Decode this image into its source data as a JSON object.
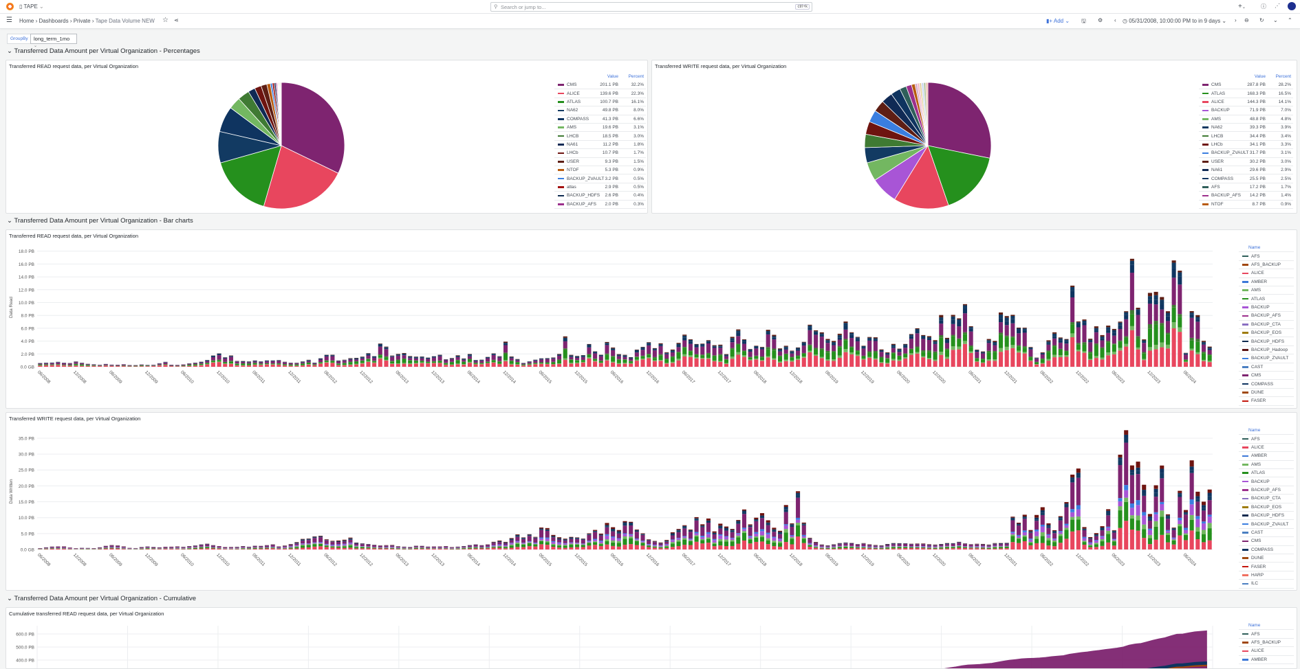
{
  "topbar": {
    "app_name": "TAPE",
    "search_placeholder": "Search or jump to...",
    "search_shortcut": "ctrl+k",
    "plus_label": "+"
  },
  "breadcrumb": [
    "Home",
    "Dashboards",
    "Private",
    "Tape Data Volume NEW"
  ],
  "toolbar": {
    "add_label": "Add",
    "time_range": "05/31/2008, 10:00:00 PM to in 9 days"
  },
  "variables": {
    "groupby_label": "GroupBy",
    "groupby_value": "long_term_1mo"
  },
  "sections": [
    "Transferred Data Amount per Virtual Organization - Percentages",
    "Transferred Data Amount per Virtual Organization - Bar charts",
    "Transferred Data Amount per Virtual Organization - Cumulative"
  ],
  "colors": {
    "AFS": "#2f5f5a",
    "AFS_BACKUP": "#a0470f",
    "ALICE": "#e8465e",
    "AMBER": "#3c78d8",
    "AMS": "#73b761",
    "ATLAS": "#25901d",
    "BACKUP": "#a855d6",
    "BACKUP_AFS": "#9c2f8c",
    "BACKUP_CTA": "#8a6fc2",
    "BACKUP_EOS": "#9e7c0a",
    "BACKUP_HDFS": "#0d2a4f",
    "BACKUP_Hadoop": "#5a1212",
    "BACKUP_ZVAULT": "#3a7ee0",
    "CAST": "#4a7fc1",
    "CMS": "#7e2470",
    "COMPASS": "#0f3460",
    "DUNE": "#a0490f",
    "FASER": "#c4160c",
    "HARP": "#f07060",
    "ILC": "#4a7fc1",
    "NA62": "#123a62",
    "NA61": "#102a55",
    "LHCB": "#3f7a33",
    "LHCb": "#6e1410",
    "USER": "#5e1e14",
    "NTOF": "#b85b0f",
    "atlas": "#a31010"
  },
  "pies": [
    {
      "title": "Transferred READ request data, per Virtual Organization",
      "col_value": "Value",
      "col_percent": "Percent",
      "rows": [
        [
          "CMS",
          "201.1 PB",
          32.2
        ],
        [
          "ALICE",
          "139.6 PB",
          22.3
        ],
        [
          "ATLAS",
          "100.7 PB",
          16.1
        ],
        [
          "NA62",
          "49.8 PB",
          8.0
        ],
        [
          "COMPASS",
          "41.3 PB",
          6.6
        ],
        [
          "AMS",
          "19.6 PB",
          3.1
        ],
        [
          "LHCB",
          "18.5 PB",
          3.0
        ],
        [
          "NA61",
          "11.2 PB",
          1.8
        ],
        [
          "LHCb",
          "10.7 PB",
          1.7
        ],
        [
          "USER",
          "9.3 PB",
          1.5
        ],
        [
          "NTOF",
          "5.3 PB",
          0.9
        ],
        [
          "BACKUP_ZVAULT",
          "3.2 PB",
          0.5
        ],
        [
          "atlas",
          "2.9 PB",
          0.5
        ],
        [
          "BACKUP_HDFS",
          "2.6 PB",
          0.4
        ],
        [
          "BACKUP_AFS",
          "2.0 PB",
          0.3
        ]
      ]
    },
    {
      "title": "Transferred WRITE request data, per Virtual Organization",
      "col_value": "Value",
      "col_percent": "Percent",
      "rows": [
        [
          "CMS",
          "287.8 PB",
          28.2
        ],
        [
          "ATLAS",
          "168.3 PB",
          16.5
        ],
        [
          "ALICE",
          "144.3 PB",
          14.1
        ],
        [
          "BACKUP",
          "71.9 PB",
          7.0
        ],
        [
          "AMS",
          "48.8 PB",
          4.8
        ],
        [
          "NA62",
          "39.3 PB",
          3.9
        ],
        [
          "LHCB",
          "34.4 PB",
          3.4
        ],
        [
          "LHCb",
          "34.1 PB",
          3.3
        ],
        [
          "BACKUP_ZVAULT",
          "31.7 PB",
          3.1
        ],
        [
          "USER",
          "30.2 PB",
          3.0
        ],
        [
          "NA61",
          "29.6 PB",
          2.9
        ],
        [
          "COMPASS",
          "25.5 PB",
          2.5
        ],
        [
          "AFS",
          "17.2 PB",
          1.7
        ],
        [
          "BACKUP_AFS",
          "14.2 PB",
          1.4
        ],
        [
          "NTOF",
          "8.7 PB",
          0.9
        ]
      ]
    }
  ],
  "chart_data": [
    {
      "type": "bar",
      "stacked": true,
      "title": "Transferred READ request data, per Virtual Organization",
      "ylabel": "Data Read",
      "xlabel": "",
      "start_month": "06/2008",
      "ylim": [
        0,
        18.5
      ],
      "yticks": [
        "0.0 GB",
        "2.0 PB",
        "4.0 PB",
        "6.0 PB",
        "8.0 PB",
        "10.0 PB",
        "12.0 PB",
        "14.0 PB",
        "16.0 PB",
        "18.0 PB"
      ],
      "xticks": [
        "06/2008",
        "12/2008",
        "06/2009",
        "12/2009",
        "06/2010",
        "12/2010",
        "06/2011",
        "12/2011",
        "06/2012",
        "12/2012",
        "06/2013",
        "12/2013",
        "06/2014",
        "12/2014",
        "06/2015",
        "12/2015",
        "06/2016",
        "12/2016",
        "06/2017",
        "12/2017",
        "06/2018",
        "12/2018",
        "06/2019",
        "12/2019",
        "06/2020",
        "12/2020",
        "06/2021",
        "12/2021",
        "06/2022",
        "12/2022",
        "06/2023",
        "12/2023",
        "06/2024"
      ],
      "legend_title": "Name",
      "legend": [
        "AFS",
        "AFS_BACKUP",
        "ALICE",
        "AMBER",
        "AMS",
        "ATLAS",
        "BACKUP",
        "BACKUP_AFS",
        "BACKUP_CTA",
        "BACKUP_EOS",
        "BACKUP_HDFS",
        "BACKUP_Hadoop",
        "BACKUP_ZVAULT",
        "CAST",
        "CMS",
        "COMPASS",
        "DUNE",
        "FASER"
      ],
      "monthly_total_PB": [
        0.6,
        0.6,
        0.6,
        0.7,
        0.6,
        0.6,
        0.9,
        0.7,
        0.5,
        0.4,
        0.3,
        0.4,
        0.3,
        0.3,
        0.4,
        0.3,
        0.3,
        0.4,
        0.3,
        0.3,
        0.5,
        0.7,
        0.3,
        0.3,
        0.4,
        0.6,
        0.7,
        0.8,
        1.0,
        1.6,
        1.9,
        1.4,
        1.8,
        1.0,
        1.0,
        0.9,
        1.0,
        0.8,
        0.9,
        0.9,
        1.0,
        0.8,
        0.7,
        0.7,
        0.9,
        1.1,
        0.6,
        1.2,
        1.7,
        1.8,
        1.0,
        1.2,
        1.5,
        1.5,
        1.6,
        2.0,
        1.5,
        3.3,
        3.0,
        1.8,
        2.2,
        2.4,
        1.8,
        1.6,
        1.5,
        1.3,
        1.5,
        1.8,
        1.2,
        1.5,
        2.0,
        1.4,
        2.0,
        1.0,
        1.0,
        1.4,
        2.0,
        1.7,
        4.3,
        1.8,
        1.3,
        0.6,
        0.8,
        1.0,
        1.2,
        1.3,
        1.5,
        2.2,
        5.3,
        2.0,
        1.7,
        1.7,
        3.2,
        2.2,
        1.8,
        4.0,
        3.3,
        2.2,
        2.0,
        1.5,
        2.5,
        2.8,
        3.5,
        2.8,
        3.8,
        2.5,
        3.0,
        4.0,
        5.0,
        4.0,
        3.2,
        3.3,
        4.0,
        3.5,
        3.8,
        2.2,
        5.0,
        5.8,
        4.0,
        2.5,
        3.0,
        3.0,
        6.0,
        5.5,
        3.2,
        3.5,
        2.5,
        2.8,
        3.5,
        6.0,
        5.5,
        5.6,
        4.8,
        4.5,
        5.5,
        7.0,
        5.0,
        4.2,
        3.0,
        4.5,
        4.8,
        3.0,
        2.5,
        3.8,
        2.8,
        3.3,
        4.6,
        5.5,
        4.8,
        5.0,
        4.6,
        9.0,
        4.8,
        8.0,
        7.0,
        8.8,
        5.8,
        2.6,
        2.5,
        4.8,
        4.5,
        9.0,
        7.8,
        7.5,
        5.5,
        5.6,
        3.0,
        1.5,
        2.5,
        4.6,
        5.7,
        4.5,
        4.0,
        11.4,
        6.5,
        7.2,
        4.6,
        7.0,
        5.5,
        6.8,
        5.8,
        6.5,
        7.8,
        15.5,
        9.0,
        4.5,
        12.8,
        13.0,
        11.5,
        8.5,
        15.3,
        13.5,
        2.0,
        8.5,
        8.5,
        4.5,
        3.5
      ]
    },
    {
      "type": "bar",
      "stacked": true,
      "title": "Transferred WRITE request data, per Virtual Organization",
      "ylabel": "Data Written",
      "xlabel": "",
      "start_month": "06/2008",
      "ylim": [
        0,
        36.5
      ],
      "yticks": [
        "0.0 GB",
        "5.0 PB",
        "10.0 PB",
        "15.0 PB",
        "20.0 PB",
        "25.0 PB",
        "30.0 PB",
        "35.0 PB"
      ],
      "xticks": [
        "06/2008",
        "12/2008",
        "06/2009",
        "12/2009",
        "06/2010",
        "12/2010",
        "06/2011",
        "12/2011",
        "06/2012",
        "12/2012",
        "06/2013",
        "12/2013",
        "06/2014",
        "12/2014",
        "06/2015",
        "12/2015",
        "06/2016",
        "12/2016",
        "06/2017",
        "12/2017",
        "06/2018",
        "12/2018",
        "06/2019",
        "12/2019",
        "06/2020",
        "12/2020",
        "06/2021",
        "12/2021",
        "06/2022",
        "12/2022",
        "06/2023",
        "12/2023",
        "06/2024"
      ],
      "legend_title": "Name",
      "legend": [
        "AFS",
        "ALICE",
        "AMBER",
        "AMS",
        "ATLAS",
        "BACKUP",
        "BACKUP_AFS",
        "BACKUP_CTA",
        "BACKUP_EOS",
        "BACKUP_HDFS",
        "BACKUP_ZVAULT",
        "CAST",
        "CMS",
        "COMPASS",
        "DUNE",
        "FASER",
        "HARP",
        "ILC"
      ],
      "monthly_total_PB": [
        0.4,
        0.6,
        0.8,
        0.9,
        1.0,
        0.7,
        0.5,
        0.6,
        0.5,
        0.4,
        0.6,
        1.0,
        1.3,
        1.3,
        1.1,
        0.6,
        0.5,
        0.8,
        0.9,
        0.7,
        0.6,
        0.8,
        0.9,
        1.1,
        1.0,
        1.2,
        1.3,
        1.5,
        1.6,
        1.2,
        1.0,
        0.8,
        0.9,
        1.0,
        1.2,
        0.9,
        1.1,
        1.0,
        1.2,
        1.5,
        1.0,
        1.4,
        2.0,
        2.6,
        3.4,
        3.2,
        3.6,
        3.8,
        3.0,
        2.8,
        3.2,
        3.6,
        4.2,
        2.2,
        1.8,
        1.5,
        1.3,
        1.2,
        1.4,
        1.6,
        1.2,
        1.0,
        0.8,
        1.1,
        1.0,
        0.8,
        0.9,
        1.0,
        1.2,
        0.9,
        1.0,
        1.1,
        1.3,
        1.4,
        1.2,
        1.5,
        2.5,
        3.2,
        2.8,
        4.0,
        4.8,
        3.5,
        4.2,
        3.5,
        6.5,
        7.0,
        5.2,
        4.5,
        3.8,
        4.0,
        3.5,
        3.0,
        4.5,
        5.8,
        5.2,
        9.5,
        8.2,
        6.8,
        9.0,
        8.0,
        5.5,
        4.5,
        3.0,
        2.8,
        2.5,
        3.5,
        6.0,
        6.5,
        7.0,
        5.5,
        9.0,
        7.5,
        10.2,
        6.5,
        9.5,
        8.0,
        6.5,
        8.5,
        11.0,
        7.0,
        9.5,
        12.0,
        10.5,
        8.0,
        6.5,
        14.0,
        7.5,
        16.0,
        7.5,
        3.5,
        2.5,
        1.8,
        1.5,
        1.8,
        2.0,
        2.0,
        1.8,
        1.5,
        1.9,
        1.7,
        1.6,
        1.5,
        1.9,
        2.0,
        1.8,
        1.7,
        1.6,
        1.8,
        2.0,
        1.9,
        1.8,
        1.9,
        2.0,
        1.8,
        2.1,
        1.7,
        1.6,
        1.9,
        2.0,
        1.8,
        2.2,
        2.0,
        1.9,
        9.0,
        7.5,
        10.5,
        6.5,
        12.5,
        15.5,
        9.0,
        6.0,
        9.5,
        13.0,
        21.0,
        24.5,
        7.5,
        4.5,
        6.0,
        8.0,
        12.5,
        5.5,
        26.0,
        33.5,
        25.5,
        29.5,
        23.5,
        13.0,
        22.0,
        26.0,
        10.0,
        6.0,
        16.5,
        12.0,
        30.0,
        21.0,
        17.5,
        20.5
      ]
    },
    {
      "type": "area",
      "stacked": true,
      "title": "Cumulative transferred READ request data, per Virtual Organization",
      "ylabel": "",
      "yticks": [
        "400.0 PB",
        "500.0 PB",
        "600.0 PB"
      ],
      "yvalues": [
        400,
        500,
        600
      ],
      "legend_title": "Name",
      "legend": [
        "AFS",
        "AFS_BACKUP",
        "ALICE",
        "AMBER"
      ],
      "note_source": "cumulative of READ monthly totals"
    }
  ]
}
